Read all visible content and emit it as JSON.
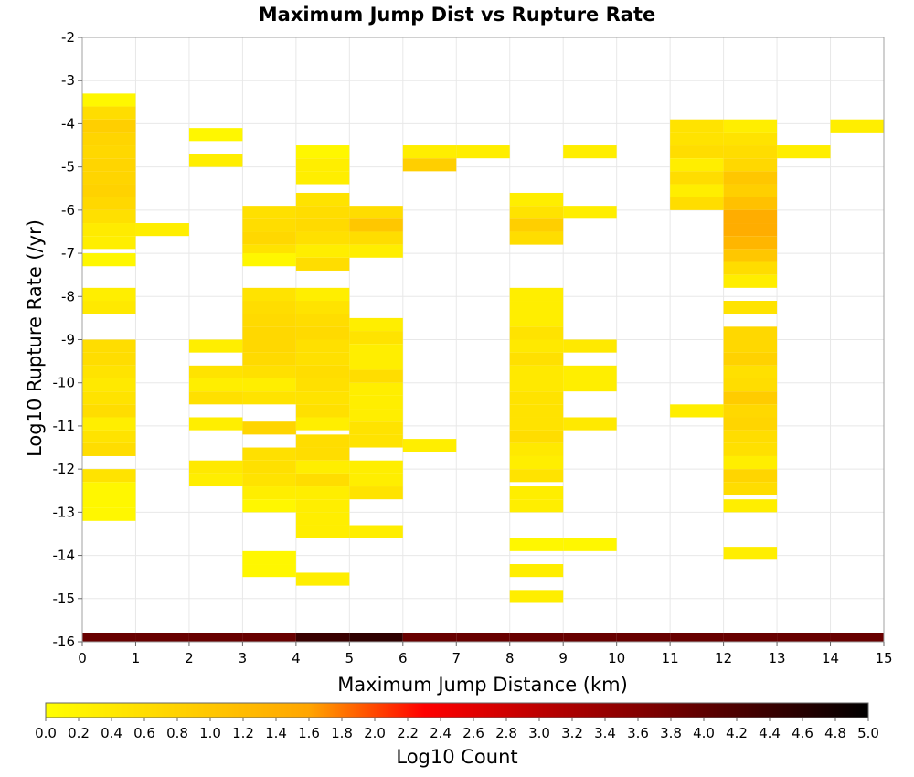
{
  "chart_data": {
    "type": "heatmap",
    "title": "Maximum Jump Dist vs Rupture Rate",
    "xlabel": "Maximum Jump Distance (km)",
    "ylabel": "Log10 Rupture Rate (/yr)",
    "xlim": [
      0,
      15
    ],
    "ylim": [
      -16,
      -2
    ],
    "x_ticks": [
      "0",
      "1",
      "2",
      "3",
      "4",
      "5",
      "6",
      "7",
      "8",
      "9",
      "10",
      "11",
      "12",
      "13",
      "14",
      "15"
    ],
    "y_ticks": [
      "-2",
      "-3",
      "-4",
      "-5",
      "-6",
      "-7",
      "-8",
      "-9",
      "-10",
      "-11",
      "-12",
      "-13",
      "-14",
      "-15",
      "-16"
    ],
    "grid": true,
    "cell_height": 0.3,
    "colorbar": {
      "label": "Log10 Count",
      "range": [
        0,
        5
      ],
      "ticks": [
        "0.0",
        "0.2",
        "0.4",
        "0.6",
        "0.8",
        "1.0",
        "1.2",
        "1.4",
        "1.6",
        "1.8",
        "2.0",
        "2.2",
        "2.4",
        "2.6",
        "2.8",
        "3.0",
        "3.2",
        "3.4",
        "3.6",
        "3.8",
        "4.0",
        "4.2",
        "4.4",
        "4.6",
        "4.8",
        "5.0"
      ],
      "colors": [
        "#ffff00",
        "#ffa500",
        "#ff0000",
        "#000000"
      ],
      "color_stops": [
        0,
        1.6,
        2.3,
        5.0
      ]
    },
    "cells": [
      [
        0,
        -3.45,
        0.15
      ],
      [
        0,
        -3.75,
        0.6
      ],
      [
        0,
        -4.05,
        0.85
      ],
      [
        0,
        -4.35,
        0.75
      ],
      [
        0,
        -4.65,
        0.7
      ],
      [
        0,
        -4.95,
        0.75
      ],
      [
        0,
        -5.25,
        0.75
      ],
      [
        0,
        -5.55,
        0.8
      ],
      [
        0,
        -5.85,
        0.7
      ],
      [
        0,
        -6.15,
        0.55
      ],
      [
        0,
        -6.45,
        0.35
      ],
      [
        0,
        -6.75,
        0.3
      ],
      [
        0,
        -7.15,
        0.15
      ],
      [
        0,
        -7.95,
        0.3
      ],
      [
        0,
        -8.25,
        0.4
      ],
      [
        0,
        -9.15,
        0.6
      ],
      [
        0,
        -9.45,
        0.6
      ],
      [
        0,
        -9.75,
        0.5
      ],
      [
        0,
        -10.05,
        0.4
      ],
      [
        0,
        -10.35,
        0.5
      ],
      [
        0,
        -10.65,
        0.6
      ],
      [
        0,
        -10.95,
        0.3
      ],
      [
        0,
        -11.25,
        0.5
      ],
      [
        0,
        -11.55,
        0.6
      ],
      [
        0,
        -12.15,
        0.5
      ],
      [
        0,
        -12.45,
        0.15
      ],
      [
        0,
        -12.75,
        0.15
      ],
      [
        0,
        -13.05,
        0.15
      ],
      [
        1,
        -6.45,
        0.3
      ],
      [
        2,
        -4.25,
        0.15
      ],
      [
        2,
        -4.85,
        0.3
      ],
      [
        2,
        -9.15,
        0.3
      ],
      [
        2,
        -9.75,
        0.5
      ],
      [
        2,
        -10.05,
        0.3
      ],
      [
        2,
        -10.35,
        0.55
      ],
      [
        2,
        -10.95,
        0.3
      ],
      [
        2,
        -11.95,
        0.4
      ],
      [
        2,
        -12.25,
        0.3
      ],
      [
        3,
        -6.05,
        0.55
      ],
      [
        3,
        -6.35,
        0.6
      ],
      [
        3,
        -6.65,
        0.7
      ],
      [
        3,
        -6.95,
        0.5
      ],
      [
        3,
        -7.15,
        0.15
      ],
      [
        3,
        -7.95,
        0.5
      ],
      [
        3,
        -8.25,
        0.6
      ],
      [
        3,
        -8.55,
        0.65
      ],
      [
        3,
        -8.85,
        0.7
      ],
      [
        3,
        -9.15,
        0.7
      ],
      [
        3,
        -9.45,
        0.65
      ],
      [
        3,
        -9.75,
        0.55
      ],
      [
        3,
        -10.05,
        0.3
      ],
      [
        3,
        -10.35,
        0.5
      ],
      [
        3,
        -11.05,
        0.75
      ],
      [
        3,
        -11.65,
        0.55
      ],
      [
        3,
        -11.95,
        0.55
      ],
      [
        3,
        -12.25,
        0.5
      ],
      [
        3,
        -12.55,
        0.3
      ],
      [
        3,
        -12.85,
        0.15
      ],
      [
        3,
        -14.05,
        0.15
      ],
      [
        3,
        -14.35,
        0.15
      ],
      [
        4,
        -4.65,
        0.15
      ],
      [
        4,
        -4.95,
        0.3
      ],
      [
        4,
        -5.25,
        0.3
      ],
      [
        4,
        -5.75,
        0.5
      ],
      [
        4,
        -6.05,
        0.6
      ],
      [
        4,
        -6.35,
        0.65
      ],
      [
        4,
        -6.65,
        0.55
      ],
      [
        4,
        -6.95,
        0.3
      ],
      [
        4,
        -7.25,
        0.6
      ],
      [
        4,
        -7.95,
        0.3
      ],
      [
        4,
        -8.25,
        0.5
      ],
      [
        4,
        -8.55,
        0.6
      ],
      [
        4,
        -8.85,
        0.65
      ],
      [
        4,
        -9.15,
        0.55
      ],
      [
        4,
        -9.45,
        0.55
      ],
      [
        4,
        -9.75,
        0.6
      ],
      [
        4,
        -10.05,
        0.55
      ],
      [
        4,
        -10.35,
        0.5
      ],
      [
        4,
        -10.65,
        0.55
      ],
      [
        4,
        -10.95,
        0.3
      ],
      [
        4,
        -11.35,
        0.6
      ],
      [
        4,
        -11.65,
        0.6
      ],
      [
        4,
        -11.95,
        0.3
      ],
      [
        4,
        -12.25,
        0.6
      ],
      [
        4,
        -12.55,
        0.3
      ],
      [
        4,
        -12.85,
        0.3
      ],
      [
        4,
        -13.15,
        0.3
      ],
      [
        4,
        -13.45,
        0.3
      ],
      [
        4,
        -14.55,
        0.3
      ],
      [
        5,
        -6.05,
        0.6
      ],
      [
        5,
        -6.35,
        1.0
      ],
      [
        5,
        -6.65,
        0.6
      ],
      [
        5,
        -6.95,
        0.3
      ],
      [
        5,
        -8.65,
        0.3
      ],
      [
        5,
        -8.95,
        0.5
      ],
      [
        5,
        -9.25,
        0.3
      ],
      [
        5,
        -9.55,
        0.3
      ],
      [
        5,
        -9.85,
        0.6
      ],
      [
        5,
        -10.15,
        0.3
      ],
      [
        5,
        -10.45,
        0.3
      ],
      [
        5,
        -10.75,
        0.3
      ],
      [
        5,
        -11.05,
        0.5
      ],
      [
        5,
        -11.35,
        0.5
      ],
      [
        5,
        -11.95,
        0.3
      ],
      [
        5,
        -12.25,
        0.3
      ],
      [
        5,
        -12.55,
        0.5
      ],
      [
        5,
        -13.45,
        0.3
      ],
      [
        6,
        -4.65,
        0.3
      ],
      [
        6,
        -4.95,
        0.85
      ],
      [
        6,
        -11.45,
        0.3
      ],
      [
        7,
        -4.65,
        0.3
      ],
      [
        8,
        -5.75,
        0.3
      ],
      [
        8,
        -6.05,
        0.5
      ],
      [
        8,
        -6.35,
        0.85
      ],
      [
        8,
        -6.65,
        0.6
      ],
      [
        8,
        -7.95,
        0.3
      ],
      [
        8,
        -8.25,
        0.3
      ],
      [
        8,
        -8.55,
        0.3
      ],
      [
        8,
        -8.85,
        0.5
      ],
      [
        8,
        -9.15,
        0.4
      ],
      [
        8,
        -9.45,
        0.55
      ],
      [
        8,
        -9.75,
        0.4
      ],
      [
        8,
        -10.05,
        0.4
      ],
      [
        8,
        -10.35,
        0.5
      ],
      [
        8,
        -10.65,
        0.5
      ],
      [
        8,
        -10.95,
        0.5
      ],
      [
        8,
        -11.25,
        0.6
      ],
      [
        8,
        -11.55,
        0.4
      ],
      [
        8,
        -11.85,
        0.3
      ],
      [
        8,
        -12.15,
        0.5
      ],
      [
        8,
        -12.55,
        0.3
      ],
      [
        8,
        -12.85,
        0.3
      ],
      [
        8,
        -13.75,
        0.15
      ],
      [
        8,
        -14.35,
        0.3
      ],
      [
        8,
        -14.95,
        0.3
      ],
      [
        9,
        -4.65,
        0.3
      ],
      [
        9,
        -6.05,
        0.3
      ],
      [
        9,
        -9.15,
        0.4
      ],
      [
        9,
        -9.75,
        0.3
      ],
      [
        9,
        -10.05,
        0.3
      ],
      [
        9,
        -10.95,
        0.4
      ],
      [
        9,
        -13.75,
        0.15
      ],
      [
        11,
        -4.05,
        0.5
      ],
      [
        11,
        -4.35,
        0.5
      ],
      [
        11,
        -4.65,
        0.6
      ],
      [
        11,
        -4.95,
        0.3
      ],
      [
        11,
        -5.25,
        0.6
      ],
      [
        11,
        -5.55,
        0.3
      ],
      [
        11,
        -5.85,
        0.6
      ],
      [
        11,
        -10.65,
        0.3
      ],
      [
        12,
        -4.05,
        0.3
      ],
      [
        12,
        -4.35,
        0.5
      ],
      [
        12,
        -4.65,
        0.6
      ],
      [
        12,
        -4.95,
        0.7
      ],
      [
        12,
        -5.25,
        1.0
      ],
      [
        12,
        -5.55,
        0.85
      ],
      [
        12,
        -5.85,
        1.1
      ],
      [
        12,
        -6.15,
        1.45
      ],
      [
        12,
        -6.45,
        1.45
      ],
      [
        12,
        -6.75,
        1.3
      ],
      [
        12,
        -7.05,
        1.0
      ],
      [
        12,
        -7.35,
        0.6
      ],
      [
        12,
        -7.65,
        0.3
      ],
      [
        12,
        -8.25,
        0.5
      ],
      [
        12,
        -8.85,
        0.7
      ],
      [
        12,
        -9.15,
        0.7
      ],
      [
        12,
        -9.45,
        0.8
      ],
      [
        12,
        -9.75,
        0.55
      ],
      [
        12,
        -10.05,
        0.6
      ],
      [
        12,
        -10.35,
        0.9
      ],
      [
        12,
        -10.65,
        0.7
      ],
      [
        12,
        -10.95,
        0.75
      ],
      [
        12,
        -11.25,
        0.6
      ],
      [
        12,
        -11.55,
        0.55
      ],
      [
        12,
        -11.85,
        0.3
      ],
      [
        12,
        -12.15,
        0.75
      ],
      [
        12,
        -12.45,
        0.6
      ],
      [
        12,
        -12.85,
        0.3
      ],
      [
        12,
        -13.95,
        0.3
      ],
      [
        13,
        -4.65,
        0.3
      ],
      [
        14,
        -4.05,
        0.3
      ]
    ],
    "baseline_row": {
      "y": -15.9,
      "values": [
        3.9,
        3.9,
        3.9,
        3.9,
        4.4,
        4.5,
        3.9,
        3.9,
        3.9,
        3.9,
        3.9,
        3.9,
        3.9,
        3.9,
        3.9
      ]
    }
  }
}
